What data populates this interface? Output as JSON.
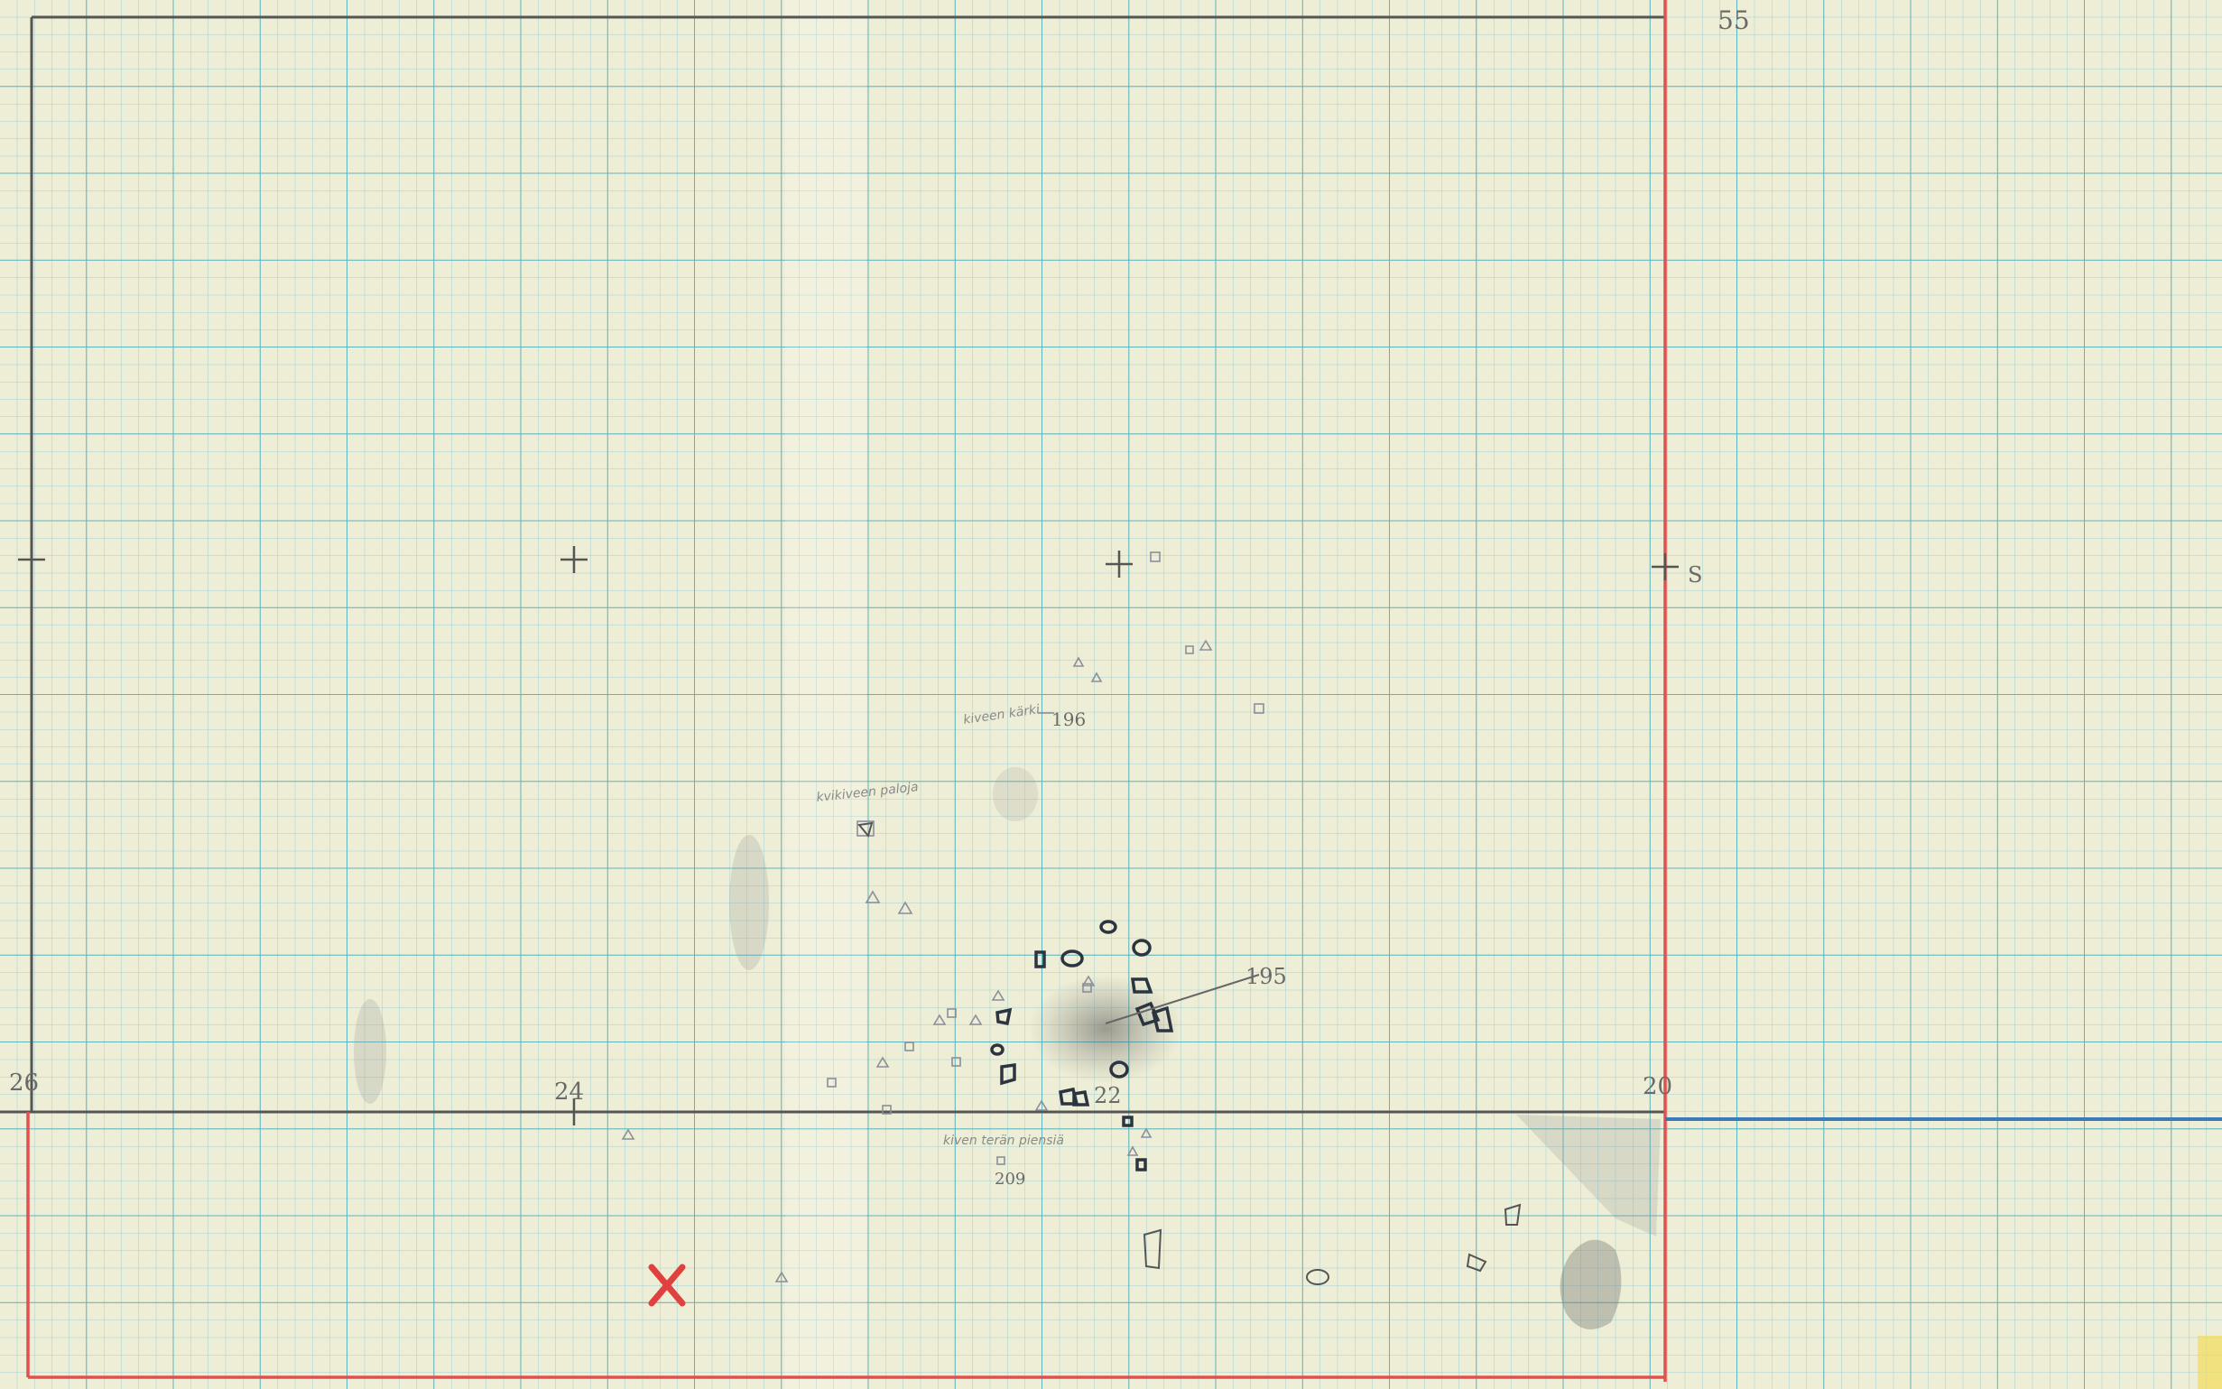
{
  "grid_labels": {
    "top_right": "55",
    "right_mid": "S",
    "left": "26",
    "mid": "24",
    "right": "20"
  },
  "finds": [
    "195",
    "196",
    "209",
    "22"
  ],
  "notes": [
    "kiveen kärki",
    "kvikiveen paloja",
    "kiven terän piensiä"
  ]
}
